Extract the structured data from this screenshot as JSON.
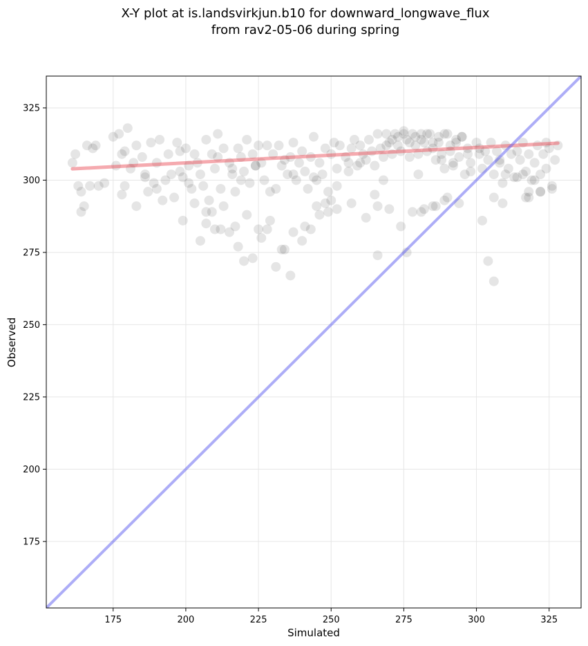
{
  "chart_data": {
    "type": "scatter",
    "title": [
      "X-Y plot at is.landsvirkjun.b10 for downward_longwave_flux",
      "from rav2-05-06 during spring"
    ],
    "xlabel": "Simulated",
    "ylabel": "Observed",
    "xlim": [
      152,
      336
    ],
    "ylim": [
      152,
      336
    ],
    "xticks": [
      175,
      200,
      225,
      250,
      275,
      300,
      325
    ],
    "yticks": [
      175,
      200,
      225,
      250,
      275,
      300,
      325
    ],
    "grid": true,
    "colors": {
      "points": "#000000",
      "fit_line": "#e8434d",
      "identity_line": "#5c5cf0"
    },
    "fit_line": {
      "x": [
        161,
        328
      ],
      "y": [
        303.9,
        312.8
      ]
    },
    "identity_line": {
      "x": [
        152,
        336
      ],
      "y": [
        152,
        336
      ]
    },
    "points": {
      "x": [
        161,
        162,
        163,
        164,
        165,
        166,
        167,
        168,
        169,
        172,
        175,
        177,
        178,
        179,
        180,
        181,
        182,
        183,
        185,
        186,
        188,
        189,
        190,
        191,
        193,
        194,
        195,
        197,
        198,
        199,
        200,
        201,
        202,
        203,
        204,
        205,
        206,
        207,
        208,
        209,
        210,
        211,
        212,
        213,
        215,
        216,
        217,
        218,
        219,
        220,
        221,
        222,
        223,
        224,
        225,
        226,
        227,
        228,
        229,
        230,
        232,
        233,
        234,
        235,
        236,
        237,
        238,
        239,
        240,
        241,
        242,
        243,
        244,
        245,
        246,
        247,
        248,
        249,
        250,
        251,
        252,
        253,
        255,
        256,
        257,
        258,
        259,
        260,
        261,
        262,
        263,
        264,
        265,
        266,
        267,
        268,
        269,
        270,
        271,
        272,
        273,
        274,
        275,
        276,
        277,
        278,
        279,
        280,
        281,
        282,
        283,
        284,
        285,
        286,
        287,
        288,
        289,
        290,
        291,
        292,
        293,
        294,
        295,
        296,
        297,
        298,
        300,
        301,
        302,
        303,
        304,
        305,
        306,
        307,
        308,
        309,
        310,
        311,
        312,
        313,
        314,
        315,
        316,
        317,
        318,
        319,
        320,
        321,
        322,
        323,
        324,
        325,
        326,
        327,
        328,
        164,
        170,
        178,
        183,
        187,
        192,
        196,
        199,
        203,
        207,
        210,
        213,
        217,
        221,
        225,
        229,
        233,
        237,
        241,
        245,
        249,
        252,
        257,
        262,
        266,
        270,
        274,
        278,
        282,
        286,
        290,
        294,
        298,
        302,
        306,
        310,
        314,
        318,
        322,
        326,
        205,
        207,
        209,
        212,
        215,
        218,
        220,
        223,
        226,
        228,
        231,
        234,
        236,
        240,
        243,
        246,
        248,
        250,
        269,
        271,
        273,
        275,
        277,
        279,
        281,
        283,
        285,
        287,
        289,
        291,
        293,
        295,
        266,
        276,
        281,
        285,
        289,
        304,
        306,
        309,
        317,
        318,
        320,
        322,
        176,
        179,
        186,
        190,
        198,
        201,
        211,
        216,
        219,
        224,
        231,
        237,
        244,
        252,
        256,
        260,
        265,
        268,
        280,
        288,
        292,
        297,
        301,
        308,
        316,
        324
      ],
      "y": [
        306,
        309,
        298,
        296,
        291,
        312,
        298,
        311,
        312,
        299,
        315,
        316,
        309,
        310,
        318,
        304,
        306,
        312,
        308,
        302,
        313,
        299,
        306,
        314,
        300,
        309,
        302,
        313,
        310,
        301,
        311,
        305,
        297,
        309,
        306,
        302,
        298,
        314,
        293,
        309,
        304,
        316,
        297,
        311,
        306,
        302,
        296,
        311,
        308,
        303,
        314,
        299,
        309,
        305,
        312,
        306,
        300,
        312,
        296,
        309,
        312,
        305,
        307,
        302,
        308,
        313,
        300,
        306,
        310,
        303,
        297,
        308,
        315,
        300,
        306,
        302,
        311,
        296,
        309,
        313,
        304,
        312,
        308,
        306,
        311,
        314,
        305,
        312,
        309,
        307,
        314,
        310,
        305,
        316,
        311,
        308,
        316,
        313,
        309,
        316,
        312,
        310,
        317,
        314,
        308,
        316,
        312,
        309,
        316,
        313,
        310,
        316,
        311,
        307,
        313,
        309,
        304,
        316,
        310,
        306,
        313,
        308,
        315,
        302,
        311,
        306,
        313,
        309,
        304,
        310,
        307,
        313,
        302,
        310,
        306,
        299,
        312,
        304,
        309,
        301,
        310,
        307,
        313,
        303,
        309,
        300,
        306,
        312,
        302,
        309,
        304,
        311,
        297,
        307,
        312,
        289,
        298,
        295,
        291,
        296,
        293,
        294,
        286,
        292,
        289,
        283,
        291,
        284,
        288,
        283,
        286,
        276,
        282,
        284,
        291,
        289,
        290,
        292,
        287,
        291,
        290,
        284,
        289,
        290,
        291,
        294,
        292,
        303,
        286,
        294,
        302,
        301,
        294,
        296,
        298,
        279,
        285,
        289,
        283,
        282,
        277,
        272,
        273,
        280,
        283,
        270,
        276,
        267,
        279,
        283,
        288,
        292,
        293,
        312,
        314,
        315,
        316,
        313,
        315,
        314,
        316,
        313,
        315,
        316,
        312,
        314,
        315,
        274,
        275,
        289,
        291,
        293,
        272,
        265,
        292,
        294,
        296,
        300,
        296,
        305,
        298,
        301,
        297,
        303,
        299,
        308,
        304,
        300,
        305,
        297,
        302,
        301,
        298,
        303,
        306,
        295,
        300,
        302,
        307,
        305,
        309,
        311,
        307,
        302,
        313
      ]
    }
  }
}
